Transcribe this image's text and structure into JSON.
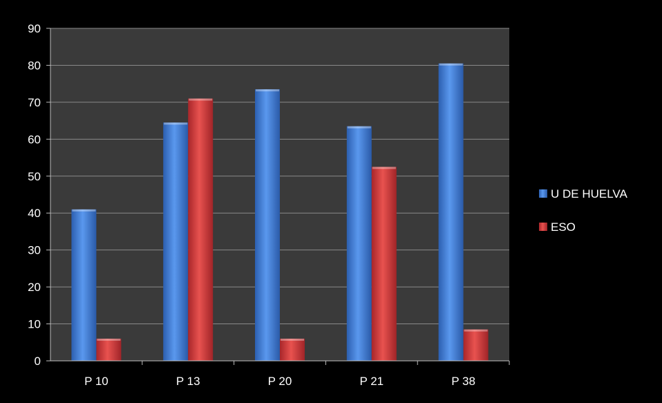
{
  "chart_data": {
    "type": "bar",
    "title": "",
    "xlabel": "",
    "ylabel": "",
    "categories": [
      "P 10",
      "P 13",
      "P 20",
      "P 21",
      "P 38"
    ],
    "series": [
      {
        "name": "U DE HUELVA",
        "values": [
          41,
          64.5,
          73.5,
          63.5,
          80.5
        ],
        "color": "#3f7fd8"
      },
      {
        "name": "ESO",
        "values": [
          6,
          71,
          6,
          52.5,
          8.5
        ],
        "color": "#d63a37"
      }
    ],
    "ylim": [
      0,
      90
    ],
    "yticks": [
      0,
      10,
      20,
      30,
      40,
      50,
      60,
      70,
      80,
      90
    ],
    "grid": true,
    "legend_position": "right",
    "plot_background": "#3a3a3a",
    "page_background": "#000000"
  }
}
